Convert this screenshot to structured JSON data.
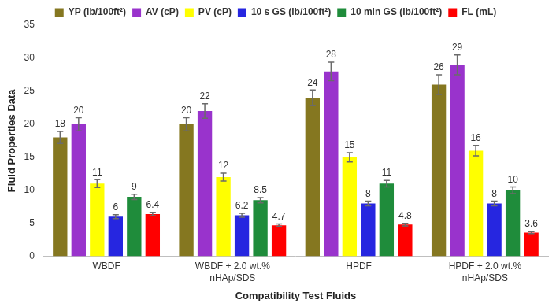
{
  "chart_data": {
    "type": "bar",
    "x_label": "Compatibility Test Fluids",
    "y_label": "Fluid Properties Data",
    "categories": [
      "WBDF",
      "WBDF + 2.0 wt.% nHAp/SDS",
      "HPDF",
      "HPDF + 2.0 wt.% nHAp/SDS"
    ],
    "series": [
      {
        "name": "YP (lb/100ft²)",
        "color": "#857720",
        "values": [
          18,
          20,
          24,
          26
        ],
        "errors": [
          0.9,
          1,
          1.2,
          1.5
        ]
      },
      {
        "name": "AV (cP)",
        "color": "#9933cc",
        "values": [
          20,
          22,
          28,
          29
        ],
        "errors": [
          1,
          1.1,
          1.4,
          1.5
        ]
      },
      {
        "name": "PV (cP)",
        "color": "#ffff00",
        "values": [
          11,
          12,
          15,
          16
        ],
        "errors": [
          0.6,
          0.6,
          0.7,
          0.8
        ]
      },
      {
        "name": "10 s GS (lb/100ft²)",
        "color": "#2626e0",
        "values": [
          6,
          6.2,
          8,
          8
        ],
        "errors": [
          0.3,
          0.3,
          0.35,
          0.35
        ]
      },
      {
        "name": "10 min GS (lb/100ft²)",
        "color": "#1f8c3b",
        "values": [
          9,
          8.5,
          11,
          10
        ],
        "errors": [
          0.4,
          0.4,
          0.5,
          0.5
        ]
      },
      {
        "name": "FL (mL)",
        "color": "#ff0000",
        "values": [
          6.4,
          4.7,
          4.8,
          3.6
        ],
        "errors": [
          0.25,
          0.2,
          0.2,
          0.15
        ]
      }
    ],
    "ylim": [
      0,
      35
    ],
    "yticks": [
      0,
      5,
      10,
      15,
      20,
      25,
      30,
      35
    ],
    "grid": false,
    "legend": "top",
    "data_labels": true
  }
}
